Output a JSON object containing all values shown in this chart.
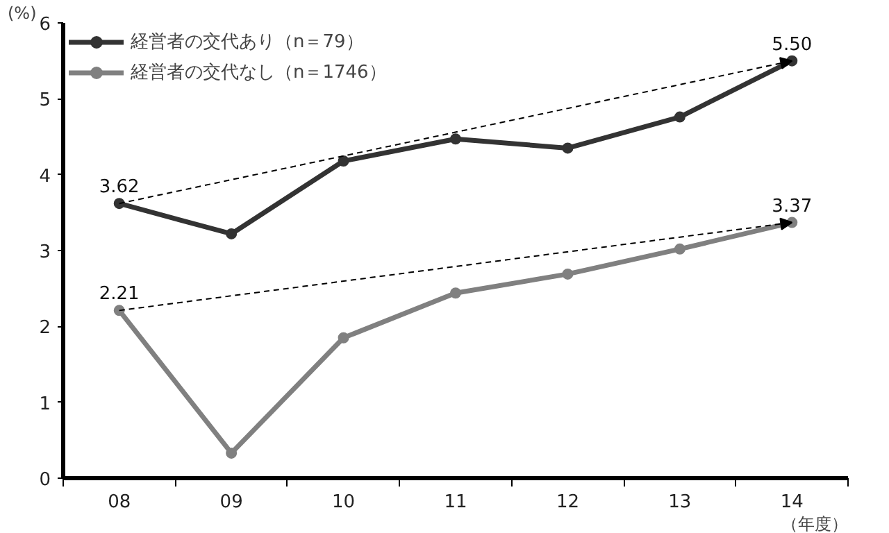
{
  "chart_data": {
    "type": "line",
    "ylabel": "(%)",
    "xlabel": "（年度）",
    "categories": [
      "08",
      "09",
      "10",
      "11",
      "12",
      "13",
      "14"
    ],
    "ylim": [
      0,
      6
    ],
    "yticks": [
      0,
      1,
      2,
      3,
      4,
      5,
      6
    ],
    "grid": false,
    "legend": "top left",
    "marker": "circle",
    "line_style": "solid",
    "series": [
      {
        "name": "経営者の交代あり（n＝79）",
        "color": "#333333",
        "values": [
          3.62,
          3.22,
          4.18,
          4.47,
          4.35,
          4.76,
          5.5
        ],
        "value_labels": [
          "3.62",
          null,
          null,
          null,
          null,
          null,
          "5.50"
        ]
      },
      {
        "name": "経営者の交代なし（n＝1746）",
        "color": "#808080",
        "values": [
          2.21,
          0.33,
          1.85,
          2.44,
          2.69,
          3.02,
          3.37
        ],
        "value_labels": [
          "2.21",
          null,
          null,
          null,
          null,
          null,
          "3.37"
        ]
      },
      {
        "type": "line",
        "color": "#000000",
        "x": [
          "08",
          "14"
        ],
        "values": [
          3.62,
          5.5
        ],
        "line_style": "dashed",
        "marker": "triangle"
      },
      {
        "type": "line",
        "color": "#000000",
        "x": [
          "08",
          "14"
        ],
        "values": [
          2.21,
          3.37
        ],
        "line_style": "dashed",
        "marker": "triangle"
      }
    ]
  }
}
